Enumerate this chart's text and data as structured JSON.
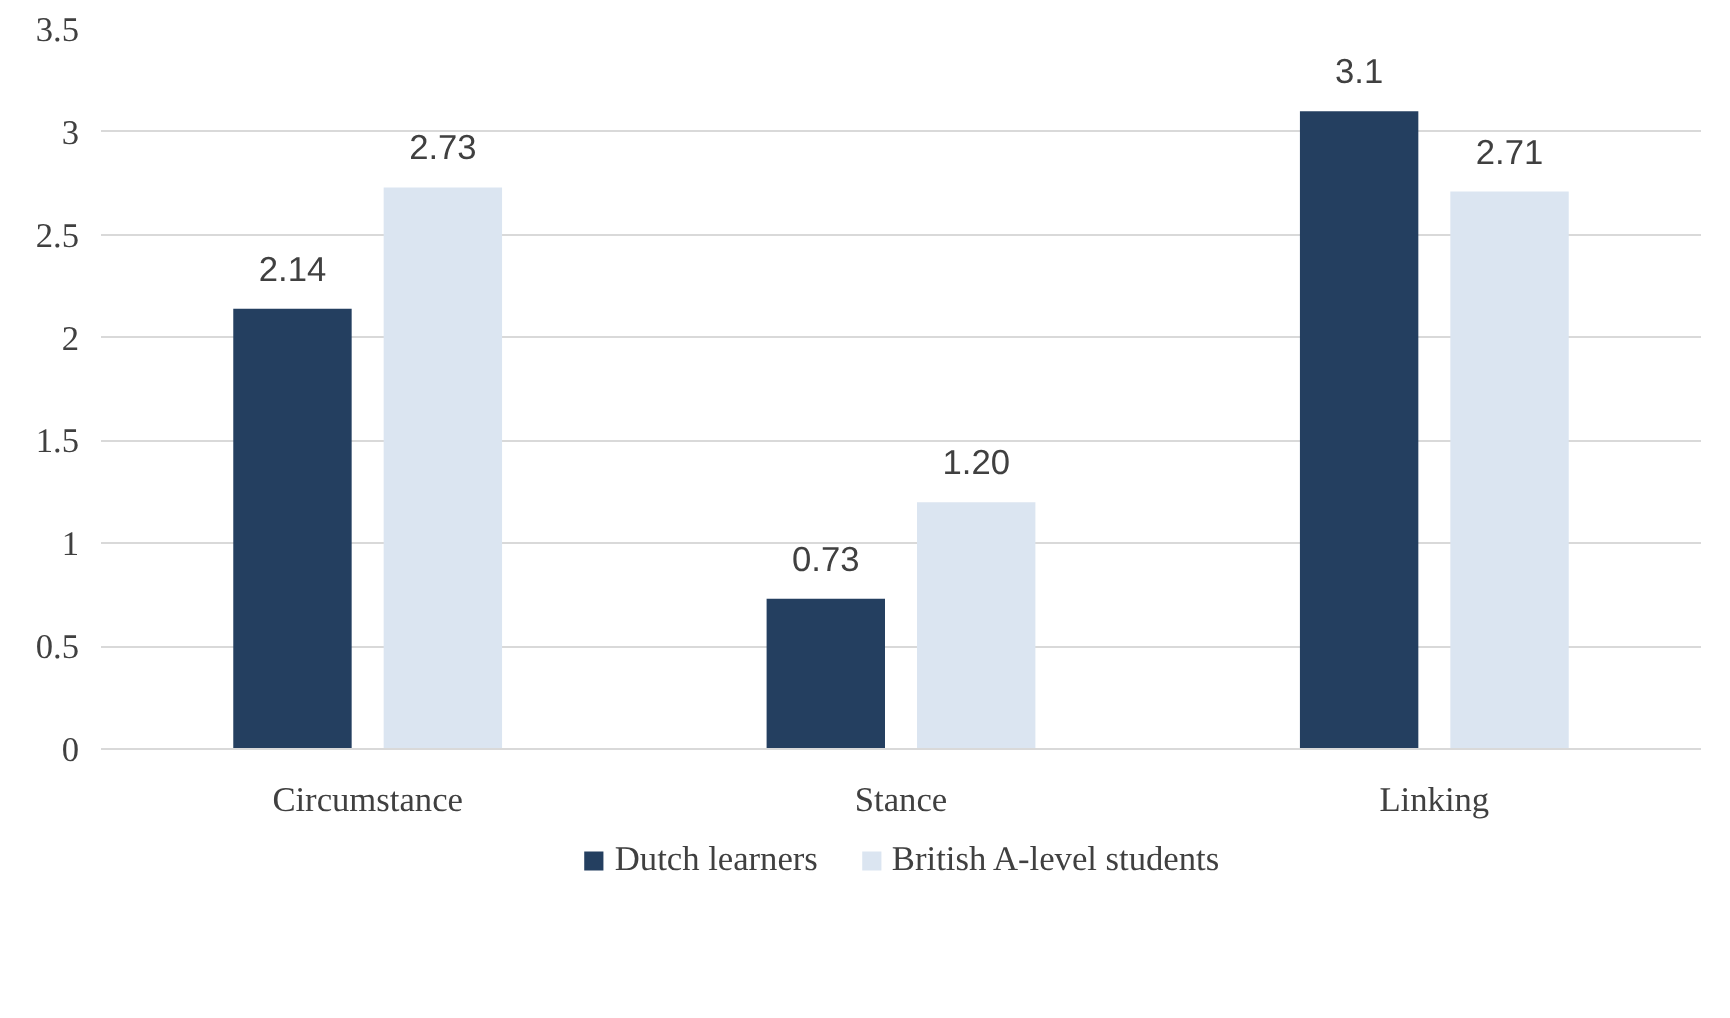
{
  "chart_data": {
    "type": "bar",
    "categories": [
      "Circumstance",
      "Stance",
      "Linking"
    ],
    "series": [
      {
        "name": "Dutch learners",
        "color": "#243f60",
        "values": [
          2.14,
          0.73,
          3.1
        ],
        "value_labels": [
          "2.14",
          "0.73",
          "3.1"
        ]
      },
      {
        "name": "British A-level students",
        "color": "#dbe5f1",
        "values": [
          2.73,
          1.2,
          2.71
        ],
        "value_labels": [
          "2.73",
          "1.20",
          "2.71"
        ]
      }
    ],
    "ylim": [
      0,
      3.5
    ],
    "yticks": [
      0,
      0.5,
      1,
      1.5,
      2,
      2.5,
      3,
      3.5
    ],
    "grid": "y",
    "legend": "bottom"
  }
}
